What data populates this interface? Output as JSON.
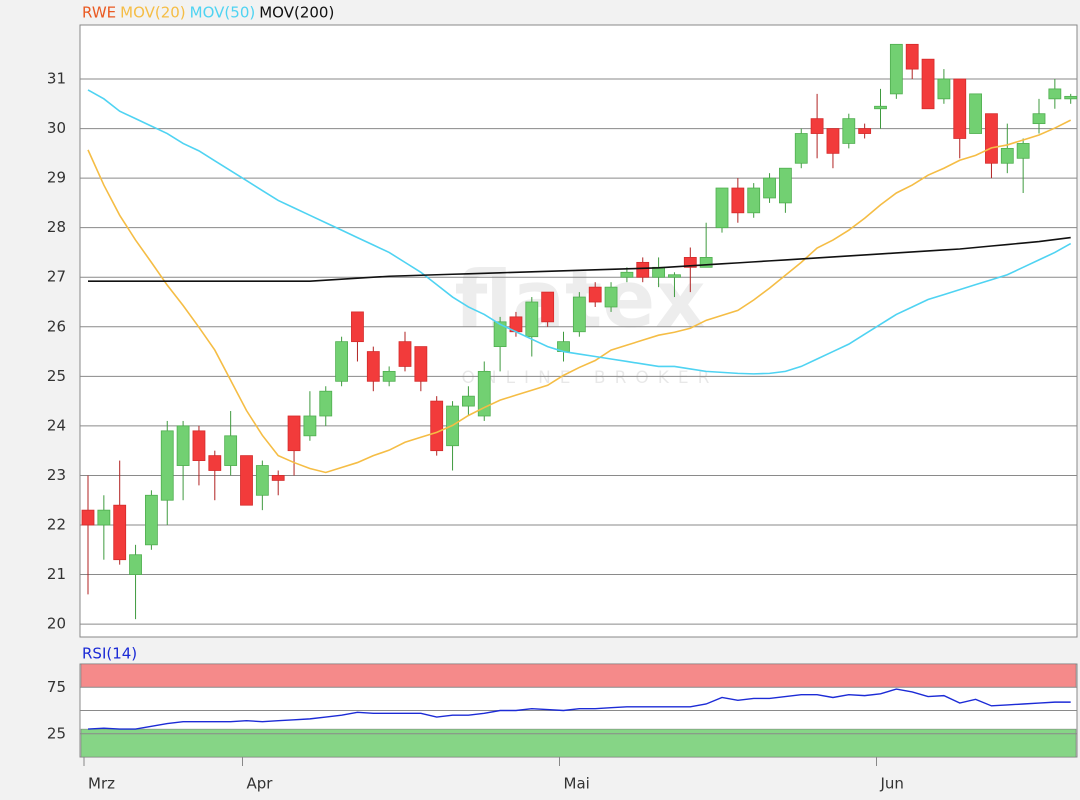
{
  "chart_data": [
    {
      "type": "candlestick",
      "ylim": [
        19.74,
        32.09
      ],
      "yticks": [
        20,
        21,
        22,
        23,
        24,
        25,
        26,
        27,
        28,
        29,
        30,
        31
      ],
      "xticks": [
        {
          "value": 0,
          "label": "Mrz"
        },
        {
          "value": 10,
          "label": "Apr"
        },
        {
          "value": 30,
          "label": "Mai"
        },
        {
          "value": 50,
          "label": "Jun"
        }
      ],
      "grid": true,
      "watermark": "flatex",
      "watermark_subtitle": "ONLINE BROKER",
      "series": [
        {
          "name": "RWE",
          "color": "#ea5a22",
          "up_color": "#72d072",
          "down_color": "#f23b3b",
          "open": [
            22.3,
            22.0,
            22.4,
            21.0,
            21.6,
            22.5,
            23.2,
            23.9,
            23.4,
            23.2,
            23.4,
            22.6,
            23.0,
            24.2,
            23.8,
            24.2,
            24.9,
            26.3,
            25.5,
            24.9,
            25.7,
            25.6,
            24.5,
            23.6,
            24.4,
            24.2,
            25.6,
            26.2,
            25.8,
            26.7,
            25.5,
            25.9,
            26.8,
            26.4,
            27.0,
            27.3,
            27.0,
            27.0,
            27.4,
            27.2,
            28.0,
            28.8,
            28.3,
            28.6,
            28.5,
            29.3,
            30.2,
            30.0,
            29.7,
            30.0,
            30.4,
            30.7,
            31.7,
            31.4,
            30.6,
            31.0,
            29.9,
            30.3,
            29.3,
            29.4,
            30.1,
            30.6,
            30.6
          ],
          "high": [
            23.0,
            22.6,
            23.3,
            21.6,
            22.7,
            24.1,
            24.1,
            24.0,
            23.5,
            24.3,
            23.4,
            23.3,
            23.1,
            24.2,
            24.7,
            24.8,
            25.8,
            26.3,
            25.6,
            25.2,
            25.9,
            25.6,
            24.6,
            24.5,
            24.8,
            25.3,
            26.2,
            26.3,
            26.6,
            26.7,
            25.9,
            26.7,
            26.9,
            26.9,
            27.2,
            27.4,
            27.4,
            27.1,
            27.6,
            28.1,
            28.8,
            29.0,
            28.9,
            29.1,
            29.2,
            30.0,
            30.7,
            30.0,
            30.3,
            30.1,
            30.8,
            31.7,
            31.7,
            31.4,
            31.2,
            31.0,
            30.7,
            30.3,
            30.1,
            29.8,
            30.6,
            31.0,
            30.7
          ],
          "low": [
            20.6,
            21.3,
            21.2,
            20.1,
            21.5,
            22.0,
            22.5,
            22.8,
            22.5,
            23.0,
            22.4,
            22.3,
            22.6,
            23.0,
            23.7,
            24.0,
            24.8,
            25.3,
            24.7,
            24.8,
            25.1,
            24.7,
            23.4,
            23.1,
            24.2,
            24.1,
            25.1,
            25.8,
            25.4,
            26.0,
            25.3,
            25.8,
            26.4,
            26.3,
            26.9,
            26.9,
            26.8,
            26.6,
            26.7,
            27.2,
            27.9,
            28.1,
            28.2,
            28.5,
            28.3,
            29.2,
            29.4,
            29.2,
            29.6,
            29.8,
            30.0,
            30.6,
            31.0,
            30.4,
            30.5,
            29.4,
            29.9,
            29.0,
            29.1,
            28.7,
            29.9,
            30.4,
            30.5
          ],
          "close": [
            22.0,
            22.3,
            21.3,
            21.4,
            22.6,
            23.9,
            24.0,
            23.3,
            23.1,
            23.8,
            22.4,
            23.2,
            22.9,
            23.5,
            24.2,
            24.7,
            25.7,
            25.7,
            24.9,
            25.1,
            25.2,
            24.9,
            23.5,
            24.4,
            24.6,
            25.1,
            26.1,
            25.9,
            26.5,
            26.1,
            25.7,
            26.6,
            26.5,
            26.8,
            27.1,
            27.0,
            27.2,
            27.05,
            27.2,
            27.4,
            28.8,
            28.3,
            28.8,
            29.0,
            29.2,
            29.9,
            29.9,
            29.5,
            30.2,
            29.9,
            30.45,
            31.7,
            31.2,
            30.4,
            31.0,
            29.8,
            30.7,
            29.3,
            29.6,
            29.7,
            30.3,
            30.8,
            30.65
          ]
        },
        {
          "name": "MOV(20)",
          "color": "#f5bd45",
          "values": [
            29.57,
            28.86,
            28.25,
            27.75,
            27.3,
            26.84,
            26.43,
            25.99,
            25.53,
            24.92,
            24.31,
            23.81,
            23.4,
            23.26,
            23.14,
            23.06,
            23.16,
            23.26,
            23.4,
            23.51,
            23.67,
            23.77,
            23.87,
            24.01,
            24.21,
            24.37,
            24.52,
            24.62,
            24.72,
            24.82,
            25.02,
            25.18,
            25.32,
            25.53,
            25.63,
            25.73,
            25.83,
            25.89,
            25.97,
            26.13,
            26.23,
            26.33,
            26.54,
            26.78,
            27.04,
            27.3,
            27.59,
            27.75,
            27.95,
            28.19,
            28.46,
            28.7,
            28.86,
            29.06,
            29.2,
            29.36,
            29.46,
            29.61,
            29.67,
            29.77,
            29.87,
            30.01,
            30.17
          ]
        },
        {
          "name": "MOV(50)",
          "color": "#4fd3f2",
          "values": [
            30.78,
            30.6,
            30.35,
            30.2,
            30.05,
            29.9,
            29.7,
            29.55,
            29.35,
            29.15,
            28.95,
            28.75,
            28.55,
            28.4,
            28.25,
            28.1,
            27.95,
            27.8,
            27.65,
            27.5,
            27.3,
            27.1,
            26.85,
            26.6,
            26.4,
            26.25,
            26.05,
            25.9,
            25.75,
            25.6,
            25.5,
            25.45,
            25.4,
            25.35,
            25.3,
            25.25,
            25.2,
            25.2,
            25.15,
            25.1,
            25.08,
            25.06,
            25.05,
            25.06,
            25.1,
            25.2,
            25.35,
            25.5,
            25.65,
            25.85,
            26.05,
            26.25,
            26.4,
            26.55,
            26.65,
            26.75,
            26.85,
            26.95,
            27.05,
            27.2,
            27.35,
            27.5,
            27.68
          ]
        },
        {
          "name": "MOV(200)",
          "color": "#111111",
          "values": [
            26.92,
            26.92,
            26.92,
            26.92,
            26.92,
            26.92,
            26.92,
            26.92,
            26.92,
            26.92,
            26.92,
            26.92,
            26.92,
            26.92,
            26.92,
            26.94,
            26.96,
            26.98,
            27.0,
            27.02,
            27.03,
            27.04,
            27.05,
            27.06,
            27.07,
            27.08,
            27.09,
            27.1,
            27.11,
            27.12,
            27.13,
            27.14,
            27.15,
            27.16,
            27.17,
            27.18,
            27.19,
            27.21,
            27.23,
            27.25,
            27.27,
            27.29,
            27.31,
            27.33,
            27.35,
            27.37,
            27.39,
            27.41,
            27.43,
            27.45,
            27.47,
            27.49,
            27.51,
            27.53,
            27.55,
            27.57,
            27.6,
            27.63,
            27.66,
            27.69,
            27.72,
            27.76,
            27.8
          ]
        }
      ]
    },
    {
      "type": "line",
      "title": "RSI(14)",
      "ylim": [
        0,
        100
      ],
      "yticks": [
        25,
        {
          "value": 50,
          "label": null
        },
        75
      ],
      "grid": true,
      "bands": [
        {
          "from": 75,
          "to": 100,
          "color": "#f58a8a"
        },
        {
          "from": 0,
          "to": 30,
          "color": "#86d586"
        }
      ],
      "series": [
        {
          "color": "#1c2bd6",
          "values": [
            30,
            31,
            30,
            30,
            33,
            36,
            38,
            38,
            38,
            38,
            39,
            38,
            39,
            40,
            41,
            43,
            45,
            48,
            47,
            47,
            47,
            47,
            43,
            45,
            45,
            47,
            50,
            50,
            52,
            51,
            50,
            52,
            52,
            53,
            54,
            54,
            54,
            54,
            54,
            57,
            64,
            61,
            63,
            63,
            65,
            67,
            67,
            64,
            67,
            66,
            68,
            73,
            70,
            65,
            66,
            58,
            62,
            55,
            56,
            57,
            58,
            59,
            59
          ]
        }
      ]
    }
  ]
}
